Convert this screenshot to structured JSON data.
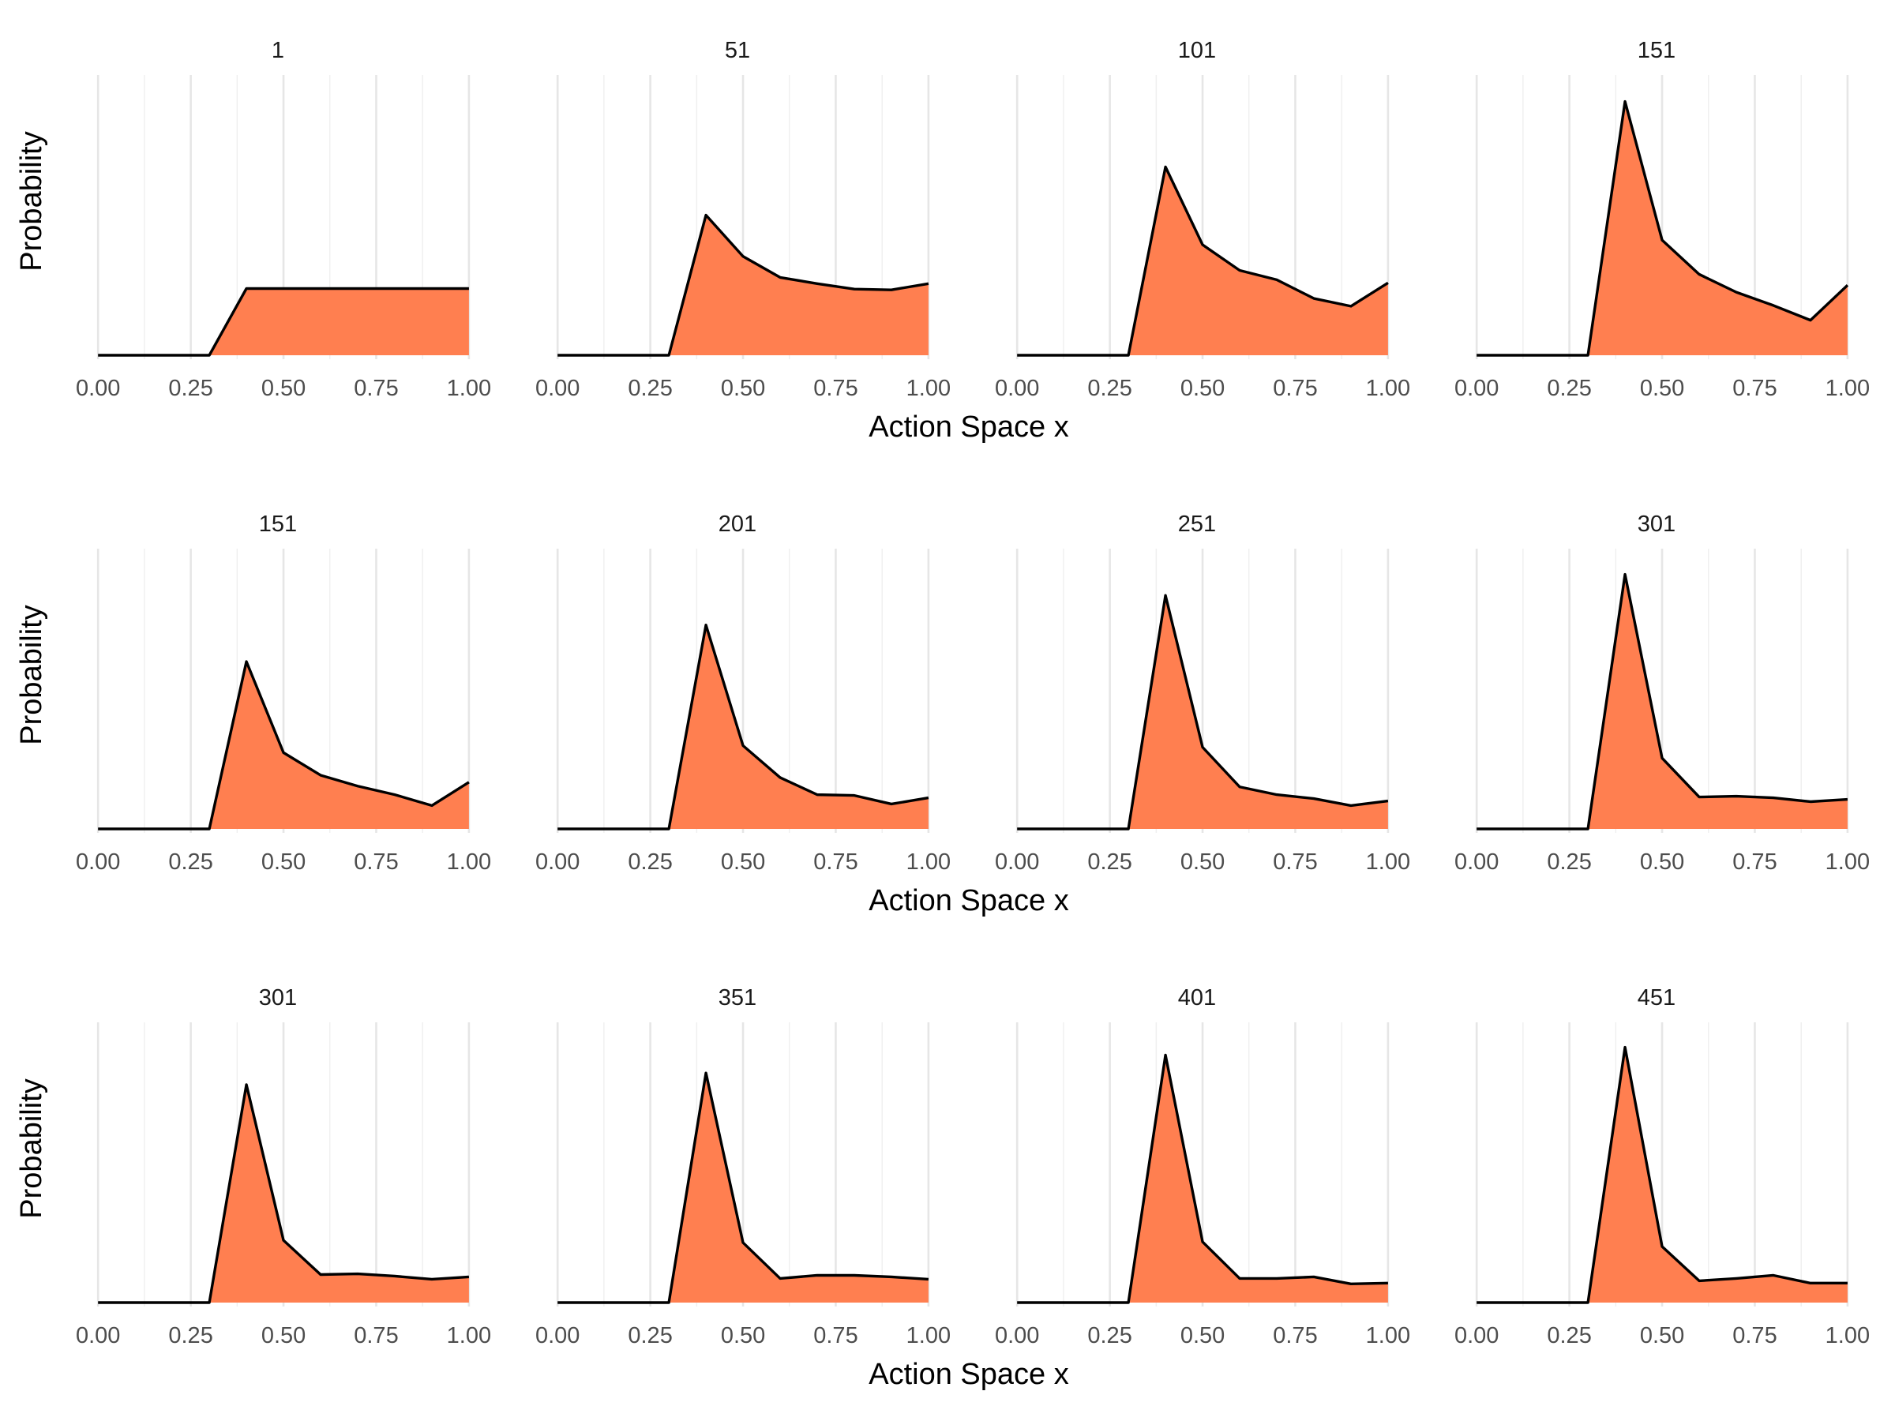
{
  "chart_data": {
    "type": "area",
    "layout": "facet-grid",
    "rows": 3,
    "cols": 4,
    "xlabel": "Action Space x",
    "ylabel": "Probability",
    "xlim": [
      0,
      1
    ],
    "x_ticks": [
      "0.00",
      "0.25",
      "0.50",
      "0.75",
      "1.00"
    ],
    "y_ticks": [],
    "grid": "vertical",
    "fill_color": "#ff7f50",
    "line_color": "#000000",
    "x": [
      0,
      0.1,
      0.2,
      0.3,
      0.4,
      0.5,
      0.6,
      0.7,
      0.8,
      0.9,
      1.0
    ],
    "ylim": [
      0,
      0.355
    ],
    "panels": [
      {
        "title": "1",
        "values": [
          0,
          0,
          0,
          0,
          0.0857,
          0.0857,
          0.0857,
          0.0857,
          0.0857,
          0.0857,
          0.0857
        ]
      },
      {
        "title": "51",
        "values": [
          0,
          0,
          0,
          0,
          0.18,
          0.127,
          0.1,
          0.092,
          0.085,
          0.084,
          0.092
        ]
      },
      {
        "title": "101",
        "values": [
          0,
          0,
          0,
          0,
          0.242,
          0.142,
          0.109,
          0.097,
          0.073,
          0.063,
          0.093
        ]
      },
      {
        "title": "151",
        "values": [
          0,
          0,
          0,
          0,
          0.326,
          0.148,
          0.104,
          0.081,
          0.064,
          0.045,
          0.09
        ]
      },
      {
        "title": "151",
        "values": [
          0,
          0,
          0,
          0,
          0.215,
          0.098,
          0.069,
          0.055,
          0.044,
          0.03,
          0.06
        ]
      },
      {
        "title": "201",
        "values": [
          0,
          0,
          0,
          0,
          0.262,
          0.107,
          0.066,
          0.044,
          0.043,
          0.032,
          0.04
        ]
      },
      {
        "title": "251",
        "values": [
          0,
          0,
          0,
          0,
          0.3,
          0.105,
          0.054,
          0.044,
          0.039,
          0.03,
          0.036
        ]
      },
      {
        "title": "301",
        "values": [
          0,
          0,
          0,
          0,
          0.327,
          0.091,
          0.041,
          0.042,
          0.04,
          0.035,
          0.038
        ]
      },
      {
        "title": "301",
        "values": [
          0,
          0,
          0,
          0,
          0.28,
          0.08,
          0.036,
          0.037,
          0.034,
          0.03,
          0.033
        ]
      },
      {
        "title": "351",
        "values": [
          0,
          0,
          0,
          0,
          0.295,
          0.077,
          0.031,
          0.035,
          0.035,
          0.033,
          0.03
        ]
      },
      {
        "title": "401",
        "values": [
          0,
          0,
          0,
          0,
          0.318,
          0.078,
          0.031,
          0.031,
          0.033,
          0.024,
          0.025
        ]
      },
      {
        "title": "451",
        "values": [
          0,
          0,
          0,
          0,
          0.328,
          0.072,
          0.028,
          0.031,
          0.035,
          0.025,
          0.025
        ]
      }
    ]
  }
}
